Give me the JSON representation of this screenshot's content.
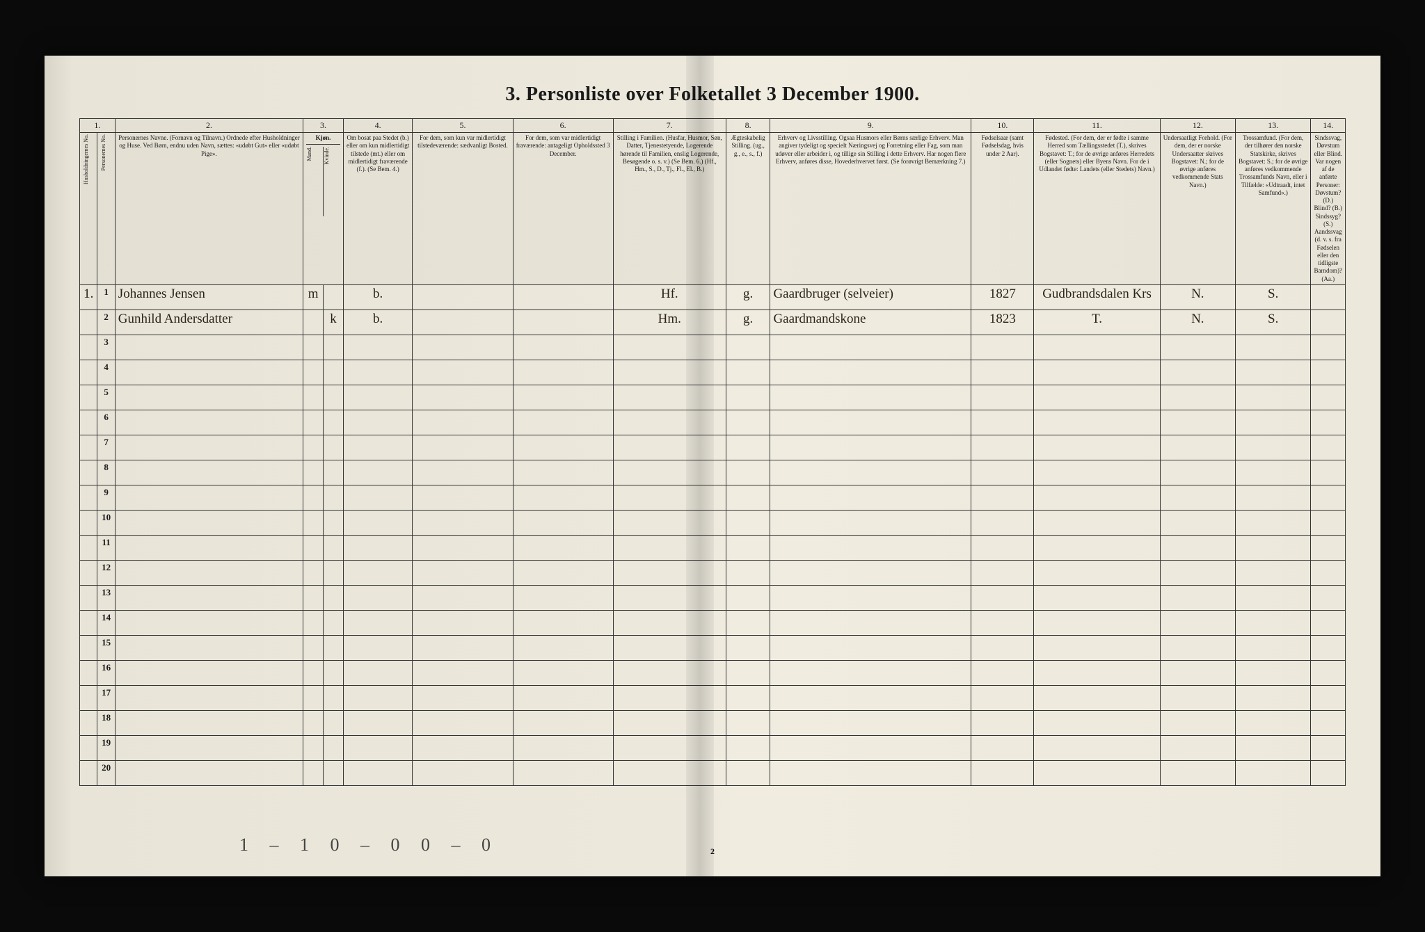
{
  "title": "3. Personliste over Folketallet 3 December 1900.",
  "column_numbers": [
    "1.",
    "2.",
    "3.",
    "4.",
    "5.",
    "6.",
    "7.",
    "8.",
    "9.",
    "10.",
    "11.",
    "12.",
    "13.",
    "14."
  ],
  "headers": {
    "c1": "Husholdningernes No.",
    "c1b": "Personernes No.",
    "c2": "Personernes Navne.\n(Fornavn og Tilnavn.)\nOrdnede efter Husholdninger og Huse.\nVed Børn, endnu uden Navn, sættes: «udøbt Gut» eller «udøbt Pige».",
    "c3": "Kjøn.",
    "c3a": "Mand.",
    "c3b": "Kvinde.",
    "c4": "Om bosat paa Stedet (b.) eller om kun midlertidigt tilstede (mt.) eller om midlertidigt fraværende (f.).\n(Se Bem. 4.)",
    "c5": "For dem, som kun var midlertidigt tilstedeværende:\nsædvanligt Bosted.",
    "c6": "For dem, som var midlertidigt fraværende:\nantageligt Opholdssted 3 December.",
    "c7": "Stilling i Familien.\n(Husfar, Husmor, Søn, Datter, Tjenestetyende, Logerende hørende til Familien, enslig Logerende, Besøgende o. s. v.) (Se Bem. 6.)\n(Hf., Hm., S., D., Tj., Fl., El., B.)",
    "c8": "Ægteskabelig Stilling.\n(ug., g., e., s., f.)",
    "c9": "Erhverv og Livsstilling.\nOgsaa Husmors eller Børns særlige Erhverv. Man angiver tydeligt og specielt Næringsvej og Forretning eller Fag, som man udøver eller arbeider i, og tillige sin Stilling i dette Erhverv. Har nogen flere Erhverv, anføres disse, Hovederhvervet først.\n(Se forøvrigt Bemærkning 7.)",
    "c10": "Fødselsaar\n(samt Fødselsdag, hvis under 2 Aar).",
    "c11": "Fødested.\n(For dem, der er fødte i samme Herred som Tællingsstedet (T.), skrives Bogstavet: T.; for de øvrige anføres Herredets (eller Sognets) eller Byens Navn. For de i Udlandet fødte: Landets (eller Stedets) Navn.)",
    "c12": "Undersaatligt Forhold.\n(For dem, der er norske Undersaatter skrives Bogstavet: N.; for de øvrige anføres vedkommende Stats Navn.)",
    "c13": "Trossamfund.\n(For dem, der tilhører den norske Statskirke, skrives Bogstavet: S.; for de øvrige anføres vedkommende Trossamfunds Navn, eller i Tilfælde: «Udtraadt, intet Samfund».)",
    "c14": "Sindssvag, Døvstum eller Blind.\nVar nogen af de anførte Personer:\nDøvstum? (D.)\nBlind? (B.)\nSindssyg? (S.)\nAandssvag (d. v. s. fra Fødselen eller den tidligste Barndom)? (Aa.)"
  },
  "rows": [
    {
      "hh": "1.",
      "pn": "1",
      "name": "Johannes Jensen",
      "sex_m": "m",
      "sex_k": "",
      "res": "b.",
      "c5": "",
      "c6": "",
      "fam": "Hf.",
      "mar": "g.",
      "occ": "Gaardbruger (selveier)",
      "born": "1827",
      "birthplace": "Gudbrandsdalen Krs",
      "nat": "N.",
      "rel": "S.",
      "c14": ""
    },
    {
      "hh": "",
      "pn": "2",
      "name": "Gunhild Andersdatter",
      "sex_m": "",
      "sex_k": "k",
      "res": "b.",
      "c5": "",
      "c6": "",
      "fam": "Hm.",
      "mar": "g.",
      "occ": "Gaardmandskone",
      "born": "1823",
      "birthplace": "T.",
      "nat": "N.",
      "rel": "S.",
      "c14": ""
    }
  ],
  "empty_row_count": 18,
  "footer_marks": "1 – 1    0 – 0    0 – 0",
  "printed_page_num": "2",
  "colors": {
    "paper": "#ece8dc",
    "ink": "#1a1a1a",
    "handwriting": "#2a2218",
    "border": "#333333",
    "background": "#0a0a0a"
  },
  "col_widths_pct": [
    1.4,
    1.4,
    15,
    1.6,
    1.6,
    5.5,
    8,
    8,
    9,
    3.5,
    16,
    5,
    10,
    6,
    6,
    6
  ]
}
